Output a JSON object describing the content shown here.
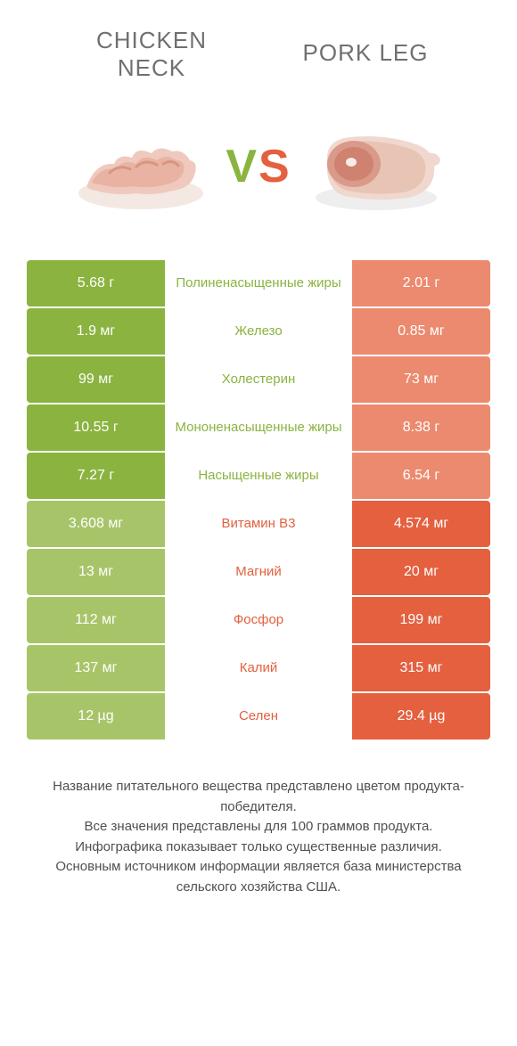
{
  "colors": {
    "green": "#8bb33f",
    "green_dim": "#a7c568",
    "orange": "#e4603f",
    "orange_dim": "#ec8a6f",
    "mid_green_text": "#8bb33f",
    "mid_orange_text": "#e4603f"
  },
  "header": {
    "left_line1": "CHICKEN",
    "left_line2": "NECK",
    "right": "PORK LEG"
  },
  "vs": {
    "v": "V",
    "s": "S"
  },
  "rows": [
    {
      "left": "5.68 г",
      "mid": "Полиненасыщенные жиры",
      "right": "2.01 г",
      "winner": "left"
    },
    {
      "left": "1.9 мг",
      "mid": "Железо",
      "right": "0.85 мг",
      "winner": "left"
    },
    {
      "left": "99 мг",
      "mid": "Холестерин",
      "right": "73 мг",
      "winner": "left"
    },
    {
      "left": "10.55 г",
      "mid": "Мононенасыщенные жиры",
      "right": "8.38 г",
      "winner": "left"
    },
    {
      "left": "7.27 г",
      "mid": "Насыщенные жиры",
      "right": "6.54 г",
      "winner": "left"
    },
    {
      "left": "3.608 мг",
      "mid": "Витамин B3",
      "right": "4.574 мг",
      "winner": "right"
    },
    {
      "left": "13 мг",
      "mid": "Магний",
      "right": "20 мг",
      "winner": "right"
    },
    {
      "left": "112 мг",
      "mid": "Фосфор",
      "right": "199 мг",
      "winner": "right"
    },
    {
      "left": "137 мг",
      "mid": "Калий",
      "right": "315 мг",
      "winner": "right"
    },
    {
      "left": "12 µg",
      "mid": "Селен",
      "right": "29.4 µg",
      "winner": "right"
    }
  ],
  "footer": {
    "l1": "Название питательного вещества представлено цветом продукта-победителя.",
    "l2": "Все значения представлены для 100 граммов продукта.",
    "l3": "Инфографика показывает только существенные различия.",
    "l4": "Основным источником информации является база министерства сельского хозяйства США."
  }
}
